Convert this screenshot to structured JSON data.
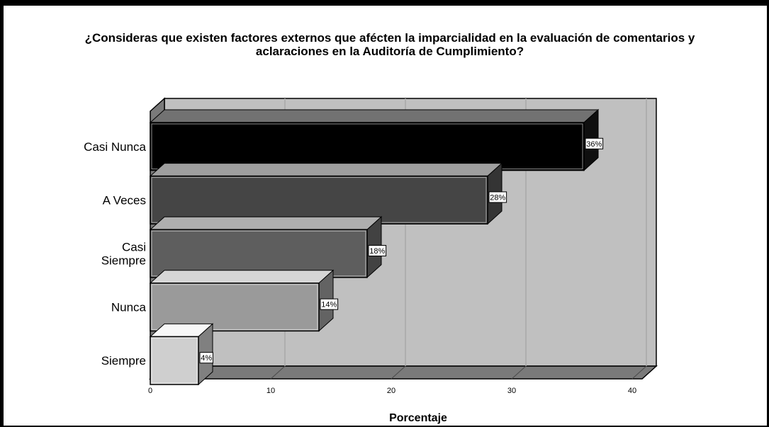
{
  "chart_data": {
    "type": "bar",
    "orientation": "horizontal",
    "title_lines": [
      "¿Consideras que existen factores externos que afécten la imparcialidad en la evaluación de comentarios y",
      "aclaraciones en la Auditoría de Cumplimiento?"
    ],
    "categories": [
      [
        "Casi Nunca"
      ],
      [
        "A Veces"
      ],
      [
        "Casi",
        "Siempre"
      ],
      [
        "Nunca"
      ],
      [
        "Siempre"
      ]
    ],
    "values": [
      36,
      28,
      18,
      14,
      4
    ],
    "data_labels": [
      "36%",
      "28%",
      "18%",
      "14%",
      "4%"
    ],
    "bar_colors": [
      "#000000",
      "#454545",
      "#5e5e5e",
      "#9a9a9a",
      "#cfcfcf"
    ],
    "xlabel": "Porcentaje",
    "xlim": [
      0,
      40
    ],
    "xticks": [
      "0",
      "10",
      "20",
      "30",
      "40"
    ],
    "grid": true,
    "style": "3d",
    "wall_color": "#c0c0c0",
    "floor_color": "#7a7a7a"
  }
}
